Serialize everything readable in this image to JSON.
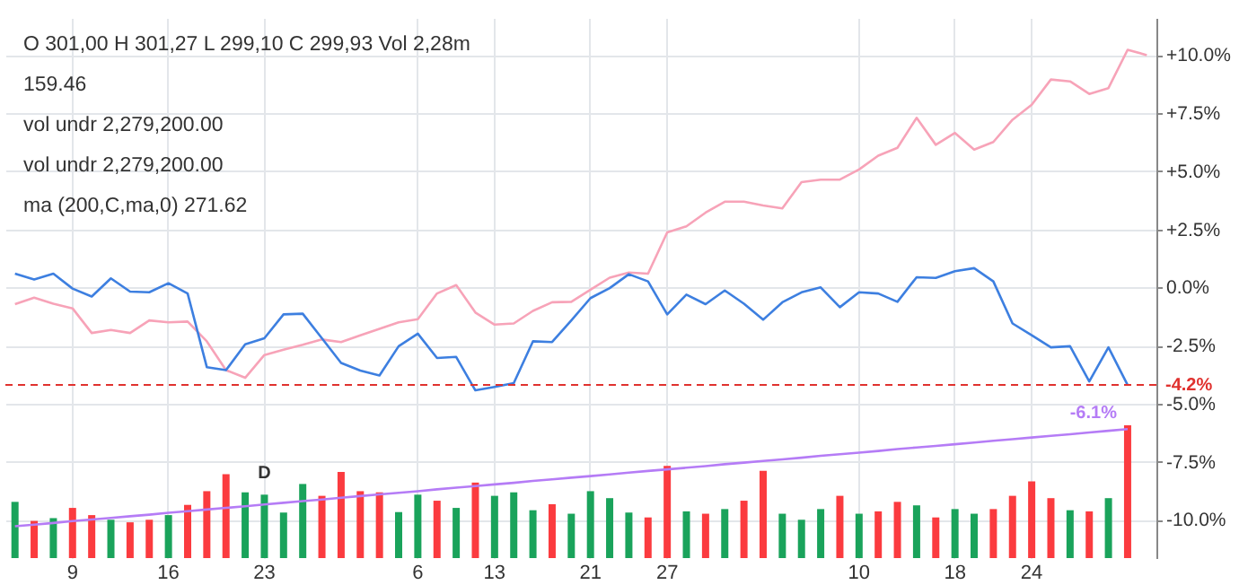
{
  "chart_data": {
    "type": "line",
    "annotations": [
      "O 301,00 H 301,27 L 299,10 C 299,93 Vol 2,28m",
      "159.46",
      "vol undr 2,279,200.00",
      "vol undr 2,279,200.00",
      "ma (200,C,ma,0) 271.62",
      {
        "text": "D",
        "x": "23",
        "y": -8.92
      }
    ],
    "categories": [
      null,
      null,
      null,
      "9",
      null,
      null,
      null,
      null,
      "16",
      null,
      null,
      null,
      null,
      "23",
      null,
      null,
      null,
      null,
      null,
      null,
      null,
      "6",
      null,
      null,
      null,
      "13",
      null,
      null,
      null,
      null,
      "21",
      null,
      null,
      null,
      "27",
      null,
      null,
      null,
      null,
      null,
      null,
      null,
      null,
      null,
      "10",
      null,
      null,
      null,
      null,
      "18",
      null,
      null,
      null,
      "24",
      null,
      null,
      null,
      null,
      null,
      null
    ],
    "series": [
      {
        "type": "bar",
        "colors": [
          "#1aa35b",
          "#fb3b3f",
          "#1aa35b",
          "#fb3b3f",
          "#fb3b3f",
          "#1aa35b",
          "#fb3b3f",
          "#fb3b3f",
          "#1aa35b",
          "#fb3b3f",
          "#fb3b3f",
          "#fb3b3f",
          "#1aa35b",
          "#1aa35b",
          "#1aa35b",
          "#1aa35b",
          "#fb3b3f",
          "#fb3b3f",
          "#fb3b3f",
          "#fb3b3f",
          "#1aa35b",
          "#1aa35b",
          "#fb3b3f",
          "#1aa35b",
          "#fb3b3f",
          "#1aa35b",
          "#1aa35b",
          "#1aa35b",
          "#fb3b3f",
          "#1aa35b",
          "#1aa35b",
          "#1aa35b",
          "#1aa35b",
          "#fb3b3f",
          "#fb3b3f",
          "#1aa35b",
          "#fb3b3f",
          "#1aa35b",
          "#fb3b3f",
          "#fb3b3f",
          "#1aa35b",
          "#1aa35b",
          "#1aa35b",
          "#fb3b3f",
          "#1aa35b",
          "#fb3b3f",
          "#fb3b3f",
          "#1aa35b",
          "#fb3b3f",
          "#1aa35b",
          "#1aa35b",
          "#fb3b3f",
          "#fb3b3f",
          "#fb3b3f",
          "#fb3b3f",
          "#1aa35b",
          "#fb3b3f",
          "#1aa35b",
          "#fb3b3f",
          "#1aa35b"
        ],
        "base": [
          -11.65,
          -11.65,
          -11.65,
          -11.65,
          -11.65,
          -11.65,
          -11.65,
          -11.65,
          -11.65,
          -11.65,
          -11.65,
          -11.65,
          -11.65,
          -11.65,
          -11.65,
          -11.65,
          -11.65,
          -11.65,
          -11.65,
          -11.65,
          -11.65,
          -11.65,
          -11.65,
          -11.65,
          -11.65,
          -11.65,
          -11.65,
          -11.65,
          -11.65,
          -11.65,
          -11.65,
          -11.65,
          -11.65,
          -11.65,
          -11.65,
          -11.65,
          -11.65,
          -11.65,
          -11.65,
          -11.65,
          -11.65,
          -11.65,
          -11.65,
          -11.65,
          -11.65,
          -11.65,
          -11.65,
          -11.65,
          -11.65,
          -11.65,
          -11.65,
          -11.65,
          -11.65,
          -11.65,
          -11.65,
          -11.65,
          -11.65,
          -11.65,
          -11.65,
          null
        ],
        "values": [
          2.42,
          1.6,
          1.72,
          2.16,
          1.85,
          1.65,
          1.54,
          1.65,
          1.85,
          2.29,
          2.88,
          3.61,
          2.83,
          2.73,
          1.96,
          3.19,
          2.68,
          3.71,
          2.88,
          2.83,
          1.98,
          2.73,
          2.47,
          2.16,
          3.25,
          2.68,
          2.83,
          2.06,
          2.32,
          1.91,
          2.88,
          2.58,
          1.96,
          1.75,
          3.97,
          2.01,
          1.91,
          2.11,
          2.47,
          3.76,
          1.91,
          1.65,
          2.11,
          2.68,
          1.91,
          2.01,
          2.42,
          2.27,
          1.75,
          2.11,
          1.91,
          2.11,
          2.68,
          3.3,
          2.58,
          2.06,
          2.01,
          2.58,
          5.72,
          null
        ]
      },
      {
        "color": "#b57cf6",
        "value_labels": [
          null,
          null,
          null,
          null,
          null,
          null,
          null,
          null,
          null,
          null,
          null,
          null,
          null,
          null,
          null,
          null,
          null,
          null,
          null,
          null,
          null,
          null,
          null,
          null,
          null,
          null,
          null,
          null,
          null,
          null,
          null,
          null,
          null,
          null,
          null,
          null,
          null,
          null,
          null,
          null,
          null,
          null,
          null,
          null,
          null,
          null,
          null,
          null,
          null,
          null,
          null,
          null,
          null,
          null,
          null,
          null,
          null,
          null,
          "-6.1%",
          null
        ],
        "values": [
          -10.28,
          -10.21,
          -10.14,
          -10.06,
          -9.99,
          -9.92,
          -9.85,
          -9.78,
          -9.7,
          -9.63,
          -9.56,
          -9.49,
          -9.42,
          -9.34,
          -9.27,
          -9.2,
          -9.13,
          -9.05,
          -8.98,
          -8.91,
          -8.84,
          -8.77,
          -8.69,
          -8.62,
          -8.55,
          -8.48,
          -8.41,
          -8.33,
          -8.26,
          -8.19,
          -8.12,
          -8.05,
          -7.97,
          -7.9,
          -7.83,
          -7.76,
          -7.69,
          -7.61,
          -7.54,
          -7.47,
          -7.4,
          -7.33,
          -7.25,
          -7.18,
          -7.11,
          -7.04,
          -6.96,
          -6.89,
          -6.82,
          -6.75,
          -6.68,
          -6.6,
          -6.53,
          -6.46,
          -6.39,
          -6.32,
          -6.24,
          -6.17,
          -6.1,
          null
        ]
      },
      {
        "color": "#f7a3b8",
        "values": [
          -0.72,
          -0.44,
          -0.7,
          -0.9,
          -1.96,
          -1.83,
          -1.96,
          -1.42,
          -1.5,
          -1.47,
          -2.32,
          -3.56,
          -3.89,
          -2.91,
          -2.68,
          -2.47,
          -2.24,
          -2.35,
          -2.06,
          -1.78,
          -1.5,
          -1.37,
          -0.26,
          0.1,
          -1.08,
          -1.6,
          -1.55,
          -1.01,
          -0.64,
          -0.62,
          -0.1,
          0.42,
          0.64,
          0.59,
          2.37,
          2.63,
          3.22,
          3.69,
          3.69,
          3.53,
          3.4,
          4.53,
          4.64,
          4.64,
          5.08,
          5.67,
          6.01,
          7.3,
          6.14,
          6.65,
          5.93,
          6.26,
          7.22,
          7.86,
          8.95,
          8.87,
          8.33,
          8.58,
          10.23,
          10.0
        ]
      },
      {
        "color": "#3d7fe0",
        "values": [
          0.59,
          0.34,
          0.59,
          -0.05,
          -0.39,
          0.39,
          -0.18,
          -0.21,
          0.18,
          -0.26,
          -3.43,
          -3.56,
          -2.45,
          -2.19,
          -1.16,
          -1.13,
          -2.19,
          -3.25,
          -3.58,
          -3.79,
          -2.53,
          -1.99,
          -3.04,
          -2.99,
          -4.43,
          -4.28,
          -4.12,
          -2.32,
          -2.35,
          -1.42,
          -0.46,
          -0.03,
          0.57,
          0.26,
          -1.16,
          -0.31,
          -0.72,
          -0.13,
          -0.7,
          -1.39,
          -0.64,
          -0.21,
          0.0,
          -0.85,
          -0.21,
          -0.26,
          -0.62,
          0.44,
          0.41,
          0.7,
          0.83,
          0.26,
          -1.55,
          -2.06,
          -2.58,
          -2.53,
          -4.05,
          -2.58,
          -4.2,
          null
        ]
      }
    ],
    "ylim": [
      -11.65,
      11.6
    ],
    "yticks": [
      {
        "value": -10,
        "label": "-10.0%"
      },
      {
        "value": -7.5,
        "label": "-7.5%"
      },
      {
        "value": -5,
        "label": "-5.0%"
      },
      {
        "value": -2.5,
        "label": "-2.5%"
      },
      {
        "value": 0,
        "label": "0.0%"
      },
      {
        "value": 2.5,
        "label": "+2.5%"
      },
      {
        "value": 5,
        "label": "+5.0%"
      },
      {
        "value": 7.5,
        "label": "+7.5%"
      },
      {
        "value": 10,
        "label": "+10.0%"
      }
    ],
    "ref_lines": [
      {
        "axis": "y",
        "value": -4.2,
        "label": "-4.2%",
        "color": "#e0322f",
        "line_style": "dashed"
      }
    ],
    "grid": true,
    "marker": "none",
    "line_style": "solid"
  }
}
